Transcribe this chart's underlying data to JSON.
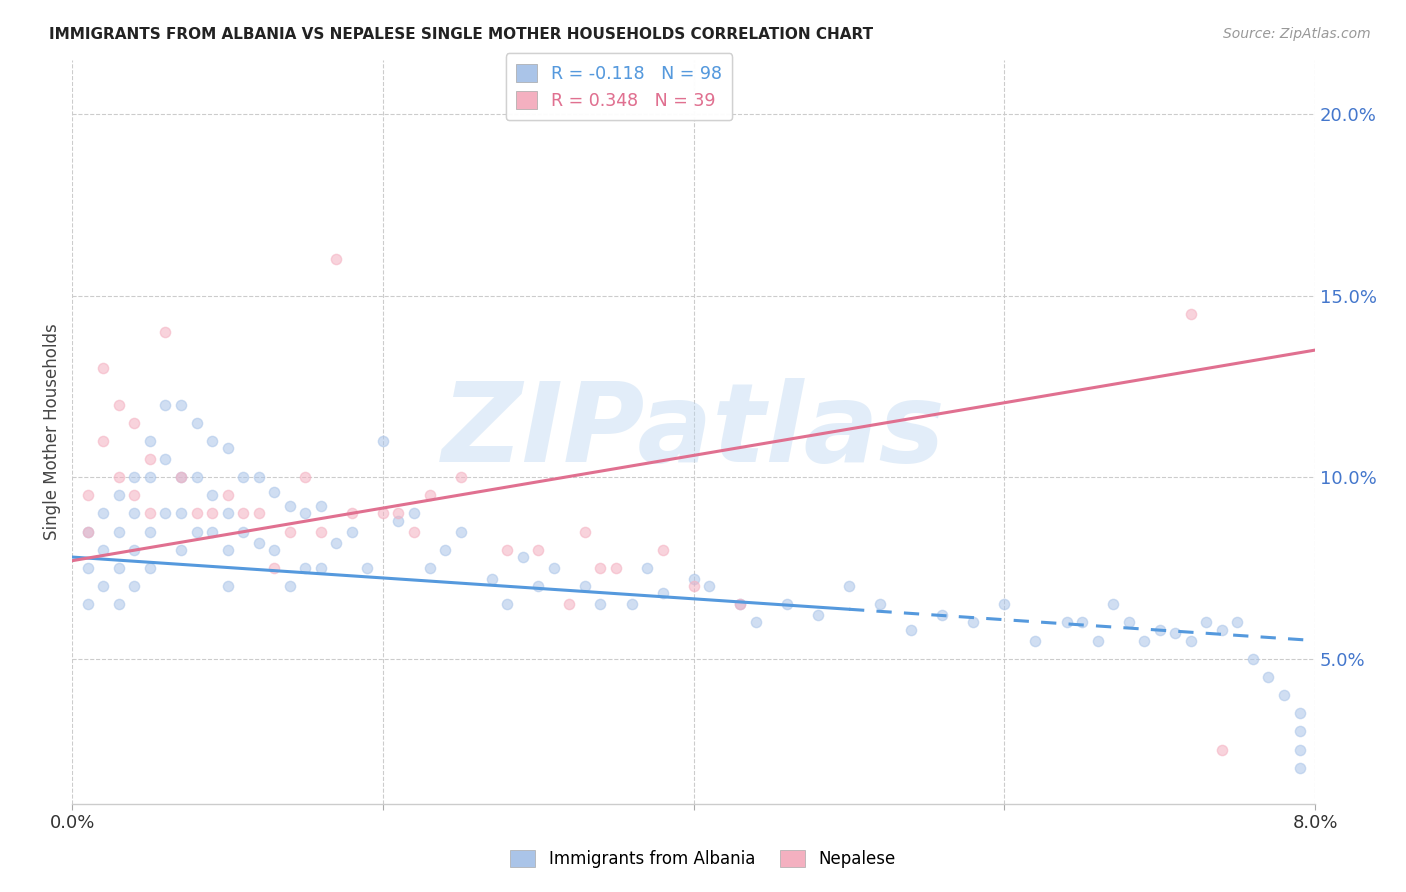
{
  "title": "IMMIGRANTS FROM ALBANIA VS NEPALESE SINGLE MOTHER HOUSEHOLDS CORRELATION CHART",
  "source": "Source: ZipAtlas.com",
  "ylabel": "Single Mother Households",
  "watermark": "ZIPatlas",
  "legend": {
    "albania": {
      "R": -0.118,
      "N": 98,
      "color": "#aac4e8",
      "line_color": "#5599dd",
      "label": "Immigrants from Albania"
    },
    "nepalese": {
      "R": 0.348,
      "N": 39,
      "color": "#f4b0c0",
      "line_color": "#e07090",
      "label": "Nepalese"
    }
  },
  "albania_scatter_x": [
    0.001,
    0.001,
    0.001,
    0.002,
    0.002,
    0.002,
    0.003,
    0.003,
    0.003,
    0.003,
    0.004,
    0.004,
    0.004,
    0.004,
    0.005,
    0.005,
    0.005,
    0.005,
    0.006,
    0.006,
    0.006,
    0.007,
    0.007,
    0.007,
    0.007,
    0.008,
    0.008,
    0.008,
    0.009,
    0.009,
    0.009,
    0.01,
    0.01,
    0.01,
    0.01,
    0.011,
    0.011,
    0.012,
    0.012,
    0.013,
    0.013,
    0.014,
    0.014,
    0.015,
    0.015,
    0.016,
    0.016,
    0.017,
    0.018,
    0.019,
    0.02,
    0.021,
    0.022,
    0.023,
    0.024,
    0.025,
    0.027,
    0.028,
    0.029,
    0.03,
    0.031,
    0.033,
    0.034,
    0.036,
    0.037,
    0.038,
    0.04,
    0.041,
    0.043,
    0.044,
    0.046,
    0.048,
    0.05,
    0.052,
    0.054,
    0.056,
    0.058,
    0.06,
    0.062,
    0.064,
    0.065,
    0.066,
    0.067,
    0.068,
    0.069,
    0.07,
    0.071,
    0.072,
    0.073,
    0.074,
    0.075,
    0.076,
    0.077,
    0.078,
    0.079,
    0.079,
    0.079,
    0.079
  ],
  "albania_scatter_y": [
    0.075,
    0.065,
    0.085,
    0.09,
    0.08,
    0.07,
    0.095,
    0.085,
    0.075,
    0.065,
    0.1,
    0.09,
    0.08,
    0.07,
    0.11,
    0.1,
    0.085,
    0.075,
    0.12,
    0.105,
    0.09,
    0.12,
    0.1,
    0.09,
    0.08,
    0.115,
    0.1,
    0.085,
    0.11,
    0.095,
    0.085,
    0.108,
    0.09,
    0.08,
    0.07,
    0.1,
    0.085,
    0.1,
    0.082,
    0.096,
    0.08,
    0.092,
    0.07,
    0.09,
    0.075,
    0.092,
    0.075,
    0.082,
    0.085,
    0.075,
    0.11,
    0.088,
    0.09,
    0.075,
    0.08,
    0.085,
    0.072,
    0.065,
    0.078,
    0.07,
    0.075,
    0.07,
    0.065,
    0.065,
    0.075,
    0.068,
    0.072,
    0.07,
    0.065,
    0.06,
    0.065,
    0.062,
    0.07,
    0.065,
    0.058,
    0.062,
    0.06,
    0.065,
    0.055,
    0.06,
    0.06,
    0.055,
    0.065,
    0.06,
    0.055,
    0.058,
    0.057,
    0.055,
    0.06,
    0.058,
    0.06,
    0.05,
    0.045,
    0.04,
    0.035,
    0.03,
    0.025,
    0.02
  ],
  "nepalese_scatter_x": [
    0.001,
    0.001,
    0.002,
    0.002,
    0.003,
    0.003,
    0.004,
    0.004,
    0.005,
    0.005,
    0.006,
    0.007,
    0.008,
    0.009,
    0.01,
    0.011,
    0.012,
    0.013,
    0.014,
    0.015,
    0.016,
    0.017,
    0.018,
    0.02,
    0.021,
    0.022,
    0.023,
    0.025,
    0.028,
    0.03,
    0.032,
    0.033,
    0.034,
    0.035,
    0.038,
    0.04,
    0.043,
    0.072,
    0.074
  ],
  "nepalese_scatter_y": [
    0.095,
    0.085,
    0.13,
    0.11,
    0.1,
    0.12,
    0.115,
    0.095,
    0.105,
    0.09,
    0.14,
    0.1,
    0.09,
    0.09,
    0.095,
    0.09,
    0.09,
    0.075,
    0.085,
    0.1,
    0.085,
    0.16,
    0.09,
    0.09,
    0.09,
    0.085,
    0.095,
    0.1,
    0.08,
    0.08,
    0.065,
    0.085,
    0.075,
    0.075,
    0.08,
    0.07,
    0.065,
    0.145,
    0.025
  ],
  "albania_line_x": [
    0.0,
    0.08
  ],
  "albania_line_y": [
    0.078,
    0.055
  ],
  "albania_line_solid_end": 0.05,
  "nepalese_line_x": [
    0.0,
    0.08
  ],
  "nepalese_line_y": [
    0.077,
    0.135
  ],
  "xlim": [
    0.0,
    0.08
  ],
  "ylim": [
    0.01,
    0.215
  ],
  "yticks": [
    0.05,
    0.1,
    0.15,
    0.2
  ],
  "ytick_labels": [
    "5.0%",
    "10.0%",
    "15.0%",
    "20.0%"
  ],
  "xticks": [
    0.0,
    0.02,
    0.04,
    0.06,
    0.08
  ],
  "xtick_labels": [
    "0.0%",
    "",
    "",
    "",
    "8.0%"
  ],
  "title_fontsize": 11,
  "source_fontsize": 10,
  "scatter_size": 55,
  "scatter_alpha": 0.55,
  "grid_color": "#cccccc",
  "tick_color": "#4477cc"
}
